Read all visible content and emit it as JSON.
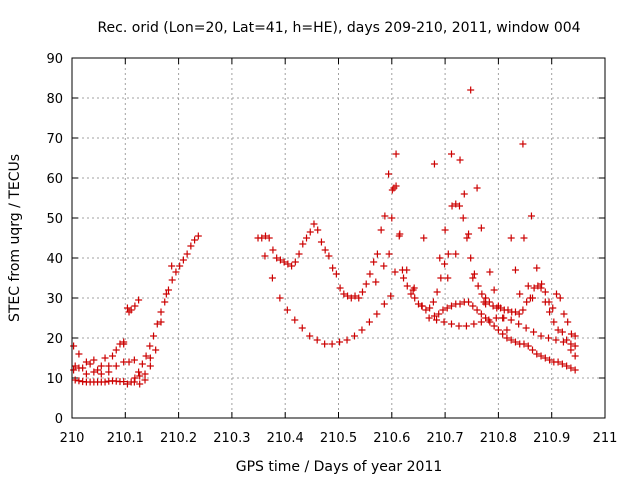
{
  "chart_data": {
    "type": "scatter",
    "title": "Rec. orid (Lon=20, Lat=41, h=HE), days 209-210, 2011, window 004",
    "xlabel": "GPS time / Days of year 2011",
    "ylabel": "STEC from uqrg / TECUs",
    "xlim": [
      210,
      211
    ],
    "ylim": [
      0,
      90
    ],
    "grid": true,
    "x_ticks": [
      {
        "value": 210,
        "label": "210"
      },
      {
        "value": 210.1,
        "label": "210.1"
      },
      {
        "value": 210.2,
        "label": "210.2"
      },
      {
        "value": 210.3,
        "label": "210.3"
      },
      {
        "value": 210.4,
        "label": "210.4"
      },
      {
        "value": 210.5,
        "label": "210.5"
      },
      {
        "value": 210.6,
        "label": "210.6"
      },
      {
        "value": 210.7,
        "label": "210.7"
      },
      {
        "value": 210.8,
        "label": "210.8"
      },
      {
        "value": 210.9,
        "label": "210.9"
      },
      {
        "value": 211,
        "label": "211"
      }
    ],
    "y_ticks": [
      {
        "value": 0,
        "label": "0"
      },
      {
        "value": 10,
        "label": "10"
      },
      {
        "value": 20,
        "label": "20"
      },
      {
        "value": 30,
        "label": "30"
      },
      {
        "value": 40,
        "label": "40"
      },
      {
        "value": 50,
        "label": "50"
      },
      {
        "value": 60,
        "label": "60"
      },
      {
        "value": 70,
        "label": "70"
      },
      {
        "value": 80,
        "label": "80"
      },
      {
        "value": 90,
        "label": "90"
      }
    ],
    "series": [
      {
        "name": "STEC",
        "marker": "plus",
        "color": "#cc0000",
        "x": [
          210.003,
          210.006,
          210.013,
          210.02,
          210.027,
          210.034,
          210.041,
          210.048,
          210.055,
          210.062,
          210.069,
          210.076,
          210.083,
          210.09,
          210.097,
          210.104,
          210.111,
          210.118,
          210.125,
          210.006,
          210.013,
          210.02,
          210.027,
          210.034,
          210.041,
          210.048,
          210.055,
          210.062,
          210.069,
          210.076,
          210.083,
          210.09,
          210.097,
          210.003,
          210.013,
          210.027,
          210.041,
          210.055,
          210.069,
          210.083,
          210.097,
          210.104,
          210.111,
          210.118,
          210.125,
          210.132,
          210.139,
          210.146,
          210.153,
          210.16,
          210.167,
          210.174,
          210.181,
          210.188,
          210.195,
          210.202,
          210.209,
          210.216,
          210.223,
          210.23,
          210.237,
          210.107,
          210.117,
          210.127,
          210.137,
          210.147,
          210.157,
          210.167,
          210.177,
          210.187,
          210.097,
          210.107,
          210.117,
          210.127,
          210.137,
          210.147,
          210.349,
          210.356,
          210.363,
          210.37,
          210.377,
          210.384,
          210.391,
          210.398,
          210.405,
          210.412,
          210.419,
          210.426,
          210.433,
          210.44,
          210.447,
          210.454,
          210.461,
          210.468,
          210.475,
          210.482,
          210.489,
          210.496,
          210.503,
          210.51,
          210.517,
          210.524,
          210.531,
          210.538,
          210.545,
          210.552,
          210.559,
          210.566,
          210.573,
          210.58,
          210.587,
          210.594,
          210.601,
          210.608,
          210.615,
          210.622,
          210.629,
          210.636,
          210.643,
          210.65,
          210.657,
          210.664,
          210.671,
          210.678,
          210.685,
          210.692,
          210.699,
          210.706,
          210.713,
          210.72,
          210.727,
          210.734,
          210.741,
          210.748,
          210.755,
          210.762,
          210.769,
          210.776,
          210.783,
          210.79,
          210.797,
          210.804,
          210.811,
          210.818,
          210.825,
          210.832,
          210.839,
          210.846,
          210.853,
          210.86,
          210.867,
          210.874,
          210.881,
          210.888,
          210.895,
          210.902,
          210.909,
          210.916,
          210.923,
          210.93,
          210.937,
          210.944,
          210.362,
          210.376,
          210.39,
          210.404,
          210.418,
          210.432,
          210.446,
          210.46,
          210.474,
          210.488,
          210.502,
          210.516,
          210.53,
          210.544,
          210.558,
          210.572,
          210.586,
          210.598,
          210.606,
          210.614,
          210.628,
          210.642,
          210.656,
          210.67,
          210.684,
          210.698,
          210.712,
          210.726,
          210.74,
          210.754,
          210.768,
          210.782,
          210.796,
          210.81,
          210.824,
          210.838,
          210.852,
          210.866,
          210.88,
          210.894,
          210.908,
          210.922,
          210.936,
          210.944,
          210.57,
          210.585,
          210.595,
          210.6,
          210.604,
          210.608,
          210.62,
          210.64,
          210.66,
          210.68,
          210.69,
          210.7,
          210.705,
          210.712,
          210.72,
          210.728,
          210.736,
          210.744,
          210.752,
          210.76,
          210.768,
          210.776,
          210.784,
          210.792,
          210.8,
          210.808,
          210.816,
          210.824,
          210.832,
          210.84,
          210.848,
          210.856,
          210.864,
          210.872,
          210.88,
          210.888,
          210.896,
          210.904,
          210.912,
          210.92,
          210.928,
          210.936,
          210.944,
          210.68,
          210.688,
          210.696,
          210.704,
          210.712,
          210.72,
          210.728,
          210.736,
          210.744,
          210.752,
          210.76,
          210.768,
          210.776,
          210.784,
          210.792,
          210.8,
          210.808,
          210.816,
          210.824,
          210.832,
          210.84,
          210.848,
          210.856,
          210.864,
          210.872,
          210.88,
          210.888,
          210.896,
          210.904,
          210.912,
          210.92,
          210.928,
          210.936,
          210.944,
          210.748,
          210.846,
          210.862,
          210.773
        ],
        "y": [
          18.0,
          13.0,
          16.0,
          12.5,
          14.0,
          13.5,
          14.5,
          12.0,
          13.0,
          15.0,
          13.0,
          15.5,
          17.0,
          18.5,
          19.0,
          27.5,
          27.0,
          28.0,
          29.5,
          9.5,
          9.3,
          9.1,
          9.0,
          9.0,
          9.0,
          9.0,
          9.0,
          9.0,
          9.2,
          9.3,
          9.2,
          9.1,
          9.1,
          12.0,
          12.5,
          11.0,
          11.5,
          11.0,
          11.5,
          13.0,
          14.0,
          8.5,
          9.0,
          10.0,
          11.5,
          13.5,
          15.5,
          18.0,
          20.5,
          23.5,
          26.5,
          29.0,
          32.0,
          34.5,
          36.5,
          38.0,
          39.5,
          41.0,
          43.0,
          44.5,
          45.5,
          26.5,
          14.5,
          10.5,
          11.0,
          13.0,
          17.0,
          24.0,
          31.0,
          38.0,
          18.5,
          14.0,
          9.0,
          8.5,
          9.5,
          15.0,
          45.0,
          45.0,
          45.5,
          45.0,
          42.0,
          40.0,
          39.5,
          39.0,
          38.5,
          38.0,
          39.0,
          41.0,
          43.5,
          45.0,
          46.5,
          48.5,
          47.0,
          44.0,
          42.0,
          40.5,
          37.5,
          36.0,
          32.5,
          31.0,
          30.5,
          30.0,
          30.5,
          30.0,
          31.5,
          33.5,
          36.0,
          39.0,
          41.0,
          47.0,
          50.5,
          61.0,
          57.0,
          58.0,
          46.0,
          35.0,
          33.0,
          31.0,
          30.0,
          28.5,
          28.0,
          27.0,
          27.5,
          29.0,
          31.5,
          35.0,
          38.5,
          41.0,
          53.0,
          53.5,
          53.0,
          50.0,
          45.0,
          40.0,
          36.0,
          33.0,
          31.0,
          30.0,
          29.0,
          28.0,
          27.5,
          27.5,
          27.0,
          27.0,
          26.5,
          26.5,
          26.0,
          27.0,
          29.0,
          30.0,
          32.5,
          33.0,
          33.5,
          31.5,
          29.0,
          27.5,
          31.0,
          30.0,
          26.0,
          24.0,
          21.0,
          20.5,
          40.5,
          35.0,
          30.0,
          27.0,
          24.5,
          22.5,
          20.5,
          19.5,
          18.5,
          18.5,
          19.0,
          19.5,
          20.5,
          22.0,
          24.0,
          26.0,
          28.5,
          30.5,
          36.5,
          45.5,
          37.0,
          32.5,
          28.0,
          25.0,
          24.5,
          24.0,
          23.5,
          23.0,
          23.0,
          23.5,
          24.0,
          24.5,
          25.0,
          25.0,
          24.5,
          23.5,
          22.5,
          21.5,
          20.5,
          20.0,
          19.5,
          19.0,
          18.5,
          18.0,
          34.0,
          38.0,
          41.0,
          50.0,
          57.5,
          66.0,
          37.0,
          32.0,
          45.0,
          63.5,
          40.0,
          47.0,
          35.0,
          66.0,
          41.0,
          64.5,
          56.0,
          46.0,
          35.0,
          57.5,
          47.5,
          28.5,
          36.5,
          32.0,
          28.0,
          25.0,
          22.0,
          45.0,
          37.0,
          31.0,
          45.0,
          33.0,
          30.0,
          37.5,
          32.5,
          29.0,
          26.5,
          24.0,
          22.0,
          21.5,
          19.5,
          17.0,
          15.5,
          25.5,
          26.0,
          27.0,
          27.5,
          28.0,
          28.5,
          28.5,
          29.0,
          29.0,
          28.0,
          27.0,
          26.0,
          25.0,
          24.0,
          23.0,
          22.0,
          21.0,
          20.0,
          19.5,
          19.0,
          18.5,
          18.5,
          18.0,
          17.0,
          16.0,
          15.5,
          15.0,
          14.5,
          14.0,
          14.0,
          13.5,
          13.0,
          12.5,
          12.0,
          82.0,
          68.5,
          50.5,
          29.0
        ]
      }
    ]
  }
}
